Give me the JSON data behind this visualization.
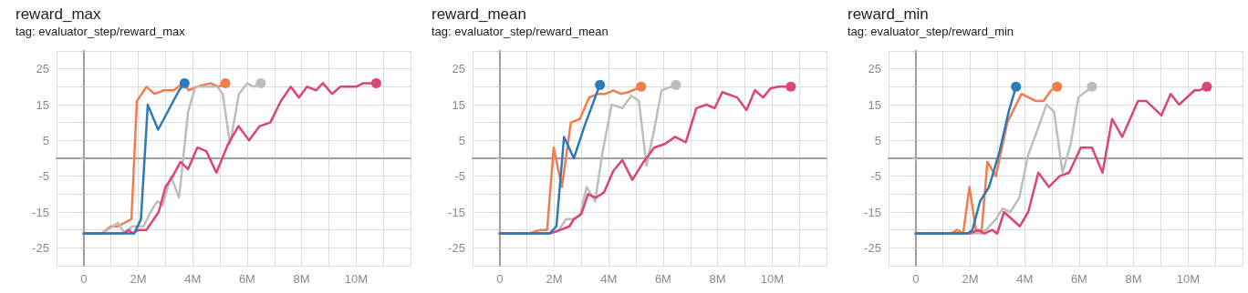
{
  "chart_data": [
    {
      "type": "line",
      "title": "reward_max",
      "subtitle": "tag: evaluator_step/reward_max",
      "xlim": [
        -1000000,
        12000000
      ],
      "ylim": [
        -30,
        30
      ],
      "grid": true,
      "xticks": [
        {
          "value": -1000000,
          "label": null
        },
        {
          "value": 0,
          "label": "0"
        },
        {
          "value": 1000000,
          "label": null
        },
        {
          "value": 2000000,
          "label": "2M"
        },
        {
          "value": 3000000,
          "label": null
        },
        {
          "value": 4000000,
          "label": "4M"
        },
        {
          "value": 5000000,
          "label": null
        },
        {
          "value": 6000000,
          "label": "6M"
        },
        {
          "value": 7000000,
          "label": null
        },
        {
          "value": 8000000,
          "label": "8M"
        },
        {
          "value": 9000000,
          "label": null
        },
        {
          "value": 10000000,
          "label": "10M"
        },
        {
          "value": 11000000,
          "label": null
        },
        {
          "value": 12000000,
          "label": null
        }
      ],
      "yticks": [
        {
          "value": -30,
          "label": null
        },
        -25,
        {
          "value": -20,
          "label": null
        },
        -15,
        {
          "value": -10,
          "label": null
        },
        -5,
        {
          "value": 0,
          "label": null
        },
        5,
        {
          "value": 10,
          "label": null
        },
        15,
        {
          "value": 20,
          "label": null
        },
        25,
        {
          "value": 30,
          "label": null
        }
      ],
      "series": [
        {
          "color": "#f47b4c",
          "x": [
            0,
            650000,
            1000000,
            1250000,
            1750000,
            1950000,
            2300000,
            2600000,
            2950000,
            3300000,
            3650000,
            3850000,
            4150000,
            4650000,
            4950000,
            5200000
          ],
          "values": [
            -21,
            -21,
            -19,
            -19,
            -17,
            16,
            20,
            18,
            19,
            19,
            21,
            19,
            20,
            21,
            20,
            21
          ]
        },
        {
          "color": "#bdbdbd",
          "x": [
            0,
            650000,
            870000,
            1260000,
            1500000,
            1770000,
            2200000,
            2450000,
            2700000,
            2900000,
            3200000,
            3500000,
            3830000,
            4100000,
            4650000,
            4900000,
            5100000,
            5370000,
            5700000,
            6000000,
            6230000,
            6500000
          ],
          "values": [
            -21,
            -21,
            -20,
            -18,
            -21,
            -19,
            -19,
            -15,
            -12,
            -13,
            -5,
            -11,
            13,
            20,
            20,
            20,
            18,
            4,
            18,
            21,
            20,
            21
          ]
        },
        {
          "color": "#dc4378",
          "x": [
            0,
            1450000,
            1650000,
            1800000,
            2000000,
            2300000,
            2750000,
            3000000,
            3270000,
            3550000,
            3830000,
            4170000,
            4500000,
            4870000,
            5300000,
            5680000,
            6070000,
            6460000,
            6850000,
            7240000,
            7600000,
            7900000,
            8200000,
            8530000,
            8780000,
            9120000,
            9420000,
            10010000,
            10260000,
            10740000
          ],
          "values": [
            -21,
            -21,
            -20,
            -21,
            -20,
            -20,
            -15,
            -8,
            -5,
            -1,
            -3,
            3,
            2,
            -4,
            4,
            9,
            5,
            9,
            10,
            16,
            20,
            17,
            20,
            19,
            21,
            18,
            20,
            20,
            21,
            21
          ]
        },
        {
          "color": "#2d7bb6",
          "x": [
            0,
            1850000,
            2100000,
            2350000,
            2730000,
            3500000,
            3700000
          ],
          "values": [
            -21,
            -21,
            -17,
            15,
            8,
            19,
            21
          ]
        }
      ]
    },
    {
      "type": "line",
      "title": "reward_mean",
      "subtitle": "tag: evaluator_step/reward_mean",
      "xlim": [
        -1000000,
        12000000
      ],
      "ylim": [
        -30,
        30
      ],
      "grid": true,
      "xticks": [
        {
          "value": -1000000,
          "label": null
        },
        {
          "value": 0,
          "label": "0"
        },
        {
          "value": 1000000,
          "label": null
        },
        {
          "value": 2000000,
          "label": "2M"
        },
        {
          "value": 3000000,
          "label": null
        },
        {
          "value": 4000000,
          "label": "4M"
        },
        {
          "value": 5000000,
          "label": null
        },
        {
          "value": 6000000,
          "label": "6M"
        },
        {
          "value": 7000000,
          "label": null
        },
        {
          "value": 8000000,
          "label": "8M"
        },
        {
          "value": 9000000,
          "label": null
        },
        {
          "value": 10000000,
          "label": "10M"
        },
        {
          "value": 11000000,
          "label": null
        },
        {
          "value": 12000000,
          "label": null
        }
      ],
      "yticks": [
        {
          "value": -30,
          "label": null
        },
        -25,
        {
          "value": -20,
          "label": null
        },
        -15,
        {
          "value": -10,
          "label": null
        },
        -5,
        {
          "value": 0,
          "label": null
        },
        5,
        {
          "value": 10,
          "label": null
        },
        15,
        {
          "value": 20,
          "label": null
        },
        25,
        {
          "value": 30,
          "label": null
        }
      ],
      "series": [
        {
          "color": "#f47b4c",
          "x": [
            0,
            1050000,
            1500000,
            1740000,
            1980000,
            2280000,
            2610000,
            2940000,
            3280000,
            3610000,
            3890000,
            4170000,
            4440000,
            4720000,
            5190000
          ],
          "values": [
            -21,
            -21,
            -20,
            -20,
            3,
            -8,
            10,
            11,
            17,
            18,
            18,
            19,
            18,
            18.5,
            20
          ]
        },
        {
          "color": "#bdbdbd",
          "x": [
            0,
            1830000,
            2170000,
            2440000,
            2720000,
            2940000,
            3190000,
            3500000,
            3780000,
            4110000,
            4500000,
            4830000,
            5110000,
            5390000,
            5670000,
            5940000,
            6470000
          ],
          "values": [
            -21,
            -21,
            -20,
            -17,
            -17,
            -16,
            -8,
            -12,
            2,
            15,
            14,
            17.5,
            16,
            -2,
            8,
            19,
            20.5
          ]
        },
        {
          "color": "#dc4378",
          "x": [
            0,
            1830000,
            2060000,
            2560000,
            2720000,
            3000000,
            3240000,
            3530000,
            3830000,
            4170000,
            4500000,
            4870000,
            5280000,
            5670000,
            6060000,
            6440000,
            6830000,
            7220000,
            7590000,
            7890000,
            8170000,
            8720000,
            9060000,
            9370000,
            9670000,
            9940000,
            10220000,
            10690000
          ],
          "values": [
            -21,
            -21,
            -20.5,
            -19,
            -17,
            -15.5,
            -10,
            -11,
            -9.5,
            -3.5,
            -0.5,
            -6,
            -1,
            3,
            4,
            6,
            4.5,
            14,
            15,
            14,
            18.5,
            17,
            13.5,
            19,
            17,
            19.5,
            20,
            20
          ]
        },
        {
          "color": "#2d7bb6",
          "x": [
            0,
            1830000,
            2080000,
            2360000,
            2720000,
            3110000,
            3600000,
            3680000
          ],
          "values": [
            -21,
            -21,
            -19,
            6,
            0,
            9,
            19,
            20.5
          ]
        }
      ]
    },
    {
      "type": "line",
      "title": "reward_min",
      "subtitle": "tag: evaluator_step/reward_min",
      "xlim": [
        -1000000,
        12000000
      ],
      "ylim": [
        -30,
        30
      ],
      "grid": true,
      "xticks": [
        {
          "value": -1000000,
          "label": null
        },
        {
          "value": 0,
          "label": "0"
        },
        {
          "value": 1000000,
          "label": null
        },
        {
          "value": 2000000,
          "label": "2M"
        },
        {
          "value": 3000000,
          "label": null
        },
        {
          "value": 4000000,
          "label": "4M"
        },
        {
          "value": 5000000,
          "label": null
        },
        {
          "value": 6000000,
          "label": "6M"
        },
        {
          "value": 7000000,
          "label": null
        },
        {
          "value": 8000000,
          "label": "8M"
        },
        {
          "value": 9000000,
          "label": null
        },
        {
          "value": 10000000,
          "label": "10M"
        },
        {
          "value": 11000000,
          "label": null
        },
        {
          "value": 12000000,
          "label": null
        }
      ],
      "yticks": [
        {
          "value": -30,
          "label": null
        },
        -25,
        {
          "value": -20,
          "label": null
        },
        -15,
        {
          "value": -10,
          "label": null
        },
        -5,
        {
          "value": 0,
          "label": null
        },
        5,
        {
          "value": 10,
          "label": null
        },
        15,
        {
          "value": 20,
          "label": null
        },
        25,
        {
          "value": 30,
          "label": null
        }
      ],
      "series": [
        {
          "color": "#f47b4c",
          "x": [
            0,
            1300000,
            1520000,
            1740000,
            1970000,
            2210000,
            2410000,
            2630000,
            2940000,
            3360000,
            3880000,
            4410000,
            4690000,
            4970000,
            5190000
          ],
          "values": [
            -21,
            -21,
            -20,
            -21,
            -8,
            -20,
            -21,
            -1,
            -5,
            10,
            18,
            16,
            16,
            19,
            20
          ]
        },
        {
          "color": "#bdbdbd",
          "x": [
            0,
            1910000,
            2300000,
            2580000,
            2940000,
            3190000,
            3470000,
            3800000,
            4130000,
            4470000,
            4800000,
            5080000,
            5390000,
            5690000,
            5970000,
            6470000
          ],
          "values": [
            -21,
            -21,
            -21,
            -20,
            -17,
            -14,
            -15,
            -11,
            1,
            8,
            15,
            13,
            -4,
            4,
            17,
            20
          ]
        },
        {
          "color": "#dc4378",
          "x": [
            0,
            1970000,
            2300000,
            2520000,
            2800000,
            2990000,
            3240000,
            3820000,
            4130000,
            4500000,
            4890000,
            5280000,
            5630000,
            6060000,
            6470000,
            6860000,
            7210000,
            7580000,
            8160000,
            8470000,
            9020000,
            9360000,
            9670000,
            10240000,
            10410000,
            10690000
          ],
          "values": [
            -21,
            -21,
            -20,
            -21,
            -20,
            -21,
            -15,
            -19,
            -15,
            -4,
            -8,
            -5,
            -4,
            3,
            3,
            -4,
            11,
            6,
            16,
            16,
            12,
            18,
            15,
            19,
            19,
            20
          ]
        },
        {
          "color": "#2d7bb6",
          "x": [
            0,
            1910000,
            2080000,
            2360000,
            2690000,
            3080000,
            3410000,
            3680000
          ],
          "values": [
            -21,
            -21,
            -20,
            -12,
            -8,
            2,
            13,
            20
          ]
        }
      ]
    }
  ]
}
